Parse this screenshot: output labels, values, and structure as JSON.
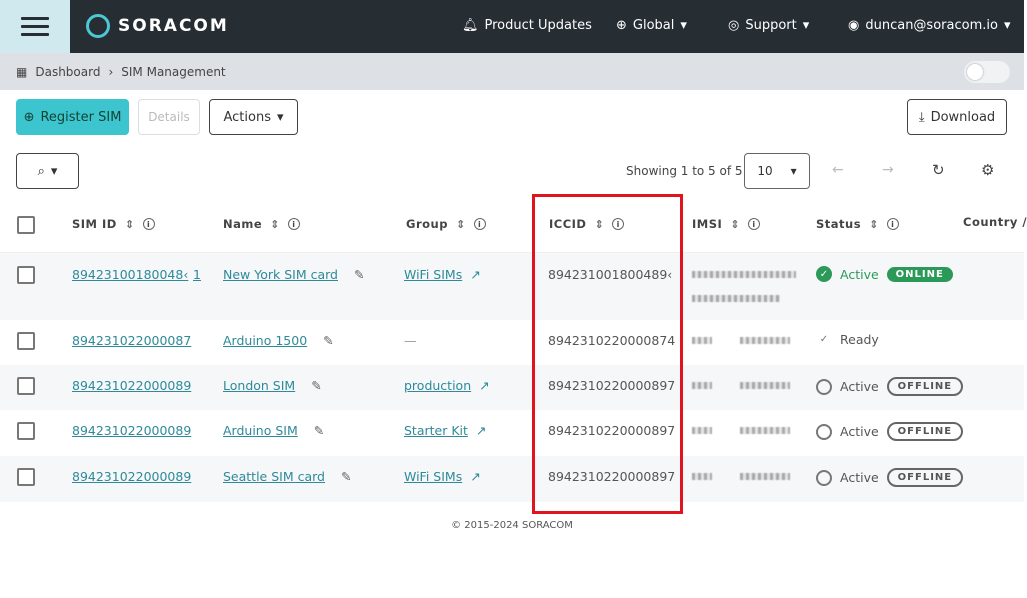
{
  "header": {
    "logo": "SORACOM",
    "product_updates": "Product Updates",
    "region": "Global",
    "support": "Support",
    "user": "duncan@soracom.io"
  },
  "breadcrumb": [
    "Dashboard",
    "SIM Management"
  ],
  "toolbar": {
    "register": "Register SIM",
    "details": "Details",
    "actions": "Actions",
    "download": "Download"
  },
  "pagination": {
    "showing": "Showing 1 to 5 of 5",
    "page_size": "10"
  },
  "columns": [
    "SIM ID",
    "Name",
    "Group",
    "ICCID",
    "IMSI",
    "Status",
    "Country /"
  ],
  "rows": [
    {
      "sim_id": "89423100180048‹",
      "sim_count": "1",
      "name": "New York SIM card",
      "group": "WiFi SIMs",
      "iccid": "894231001800489‹",
      "status": "Active",
      "badge": "ONLINE",
      "state": "online"
    },
    {
      "sim_id": "894231022000087",
      "name": "Arduino 1500",
      "group": "—",
      "iccid": "8942310220000874",
      "status": "Ready",
      "state": "ready"
    },
    {
      "sim_id": "894231022000089",
      "name": "London SIM",
      "group": "production",
      "iccid": "8942310220000897",
      "status": "Active",
      "badge": "OFFLINE",
      "state": "offline"
    },
    {
      "sim_id": "894231022000089",
      "name": "Arduino SIM",
      "group": "Starter Kit",
      "iccid": "8942310220000897",
      "status": "Active",
      "badge": "OFFLINE",
      "state": "offline"
    },
    {
      "sim_id": "894231022000089",
      "name": "Seattle SIM card",
      "group": "WiFi SIMs",
      "iccid": "8942310220000897",
      "status": "Active",
      "badge": "OFFLINE",
      "state": "offline"
    }
  ],
  "footer": "© 2015-2024 SORACOM",
  "colors": {
    "header": "#262d33",
    "accent": "#3cc4cf",
    "link": "#2e8a99",
    "online": "#2b9a58",
    "highlight": "#e0141c"
  }
}
